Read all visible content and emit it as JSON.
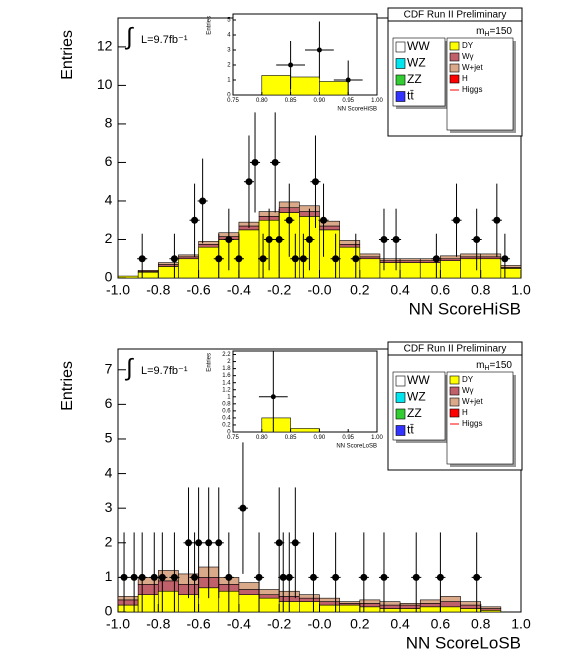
{
  "chart_data": [
    {
      "type": "stacked-histogram",
      "title": "CDF Run II Preliminary",
      "mass": [
        "m",
        "H",
        "=150"
      ],
      "integral": "∫",
      "lumi": "L=9.7fb⁻¹",
      "xlabel": "NN ScoreHiSB",
      "ylabel": "Entries",
      "xlim": [
        -1,
        1
      ],
      "ylim": [
        0,
        13.5
      ],
      "xticks": [
        {
          "value": -1,
          "label": "-1.0"
        },
        -0.8,
        -0.6,
        -0.4,
        -0.2,
        {
          "value": 0,
          "label": "-0.0"
        },
        0.2,
        0.4,
        0.6,
        0.8,
        {
          "value": 1,
          "label": "1.0"
        }
      ],
      "yticks": [
        0,
        2,
        4,
        6,
        8,
        10,
        12
      ],
      "bins": [
        -1,
        -0.9,
        -0.8,
        -0.7,
        -0.6,
        -0.5,
        -0.4,
        -0.3,
        -0.2,
        -0.1,
        0,
        0.1,
        0.2,
        0.3,
        0.4,
        0.5,
        0.6,
        0.7,
        0.8,
        0.9,
        1
      ],
      "series": [
        {
          "name": "DY",
          "color": "#ffff00",
          "values": [
            0.1,
            0.3,
            0.6,
            1.0,
            1.6,
            2.0,
            2.5,
            3.0,
            3.4,
            3.2,
            2.5,
            1.6,
            1.0,
            0.8,
            0.8,
            0.8,
            0.9,
            1.0,
            1.0,
            0.5
          ]
        },
        {
          "name": "Wγ",
          "color": "#c0606a",
          "values": [
            0,
            0.05,
            0.1,
            0.1,
            0.15,
            0.15,
            0.2,
            0.2,
            0.25,
            0.25,
            0.2,
            0.15,
            0.1,
            0.1,
            0.1,
            0.1,
            0.1,
            0.1,
            0.1,
            0.05
          ]
        },
        {
          "name": "W+jet",
          "color": "#d9a98a",
          "values": [
            0,
            0.05,
            0.1,
            0.1,
            0.15,
            0.2,
            0.2,
            0.25,
            0.3,
            0.3,
            0.25,
            0.2,
            0.15,
            0.1,
            0.1,
            0.1,
            0.15,
            0.15,
            0.15,
            0.1
          ]
        }
      ],
      "legend_left": [
        {
          "name": "WW",
          "color": "#ffffff"
        },
        {
          "name": "WZ",
          "color": "#00e5ee"
        },
        {
          "name": "ZZ",
          "color": "#33cc33"
        },
        {
          "name": "tt̄",
          "color": "#3333ff"
        }
      ],
      "legend_right": [
        {
          "name": "H",
          "color": "#ff0000"
        },
        {
          "name": "Higgs",
          "color": "#ff0000",
          "style": "line"
        }
      ],
      "data": {
        "x": [
          -0.88,
          -0.72,
          -0.62,
          -0.58,
          -0.5,
          -0.45,
          -0.4,
          -0.35,
          -0.32,
          -0.28,
          -0.25,
          -0.22,
          -0.2,
          -0.15,
          -0.12,
          -0.08,
          -0.05,
          -0.02,
          0.02,
          0.08,
          0.18,
          0.32,
          0.38,
          0.58,
          0.68,
          0.78,
          0.88,
          0.92
        ],
        "values": [
          1,
          1,
          3,
          4,
          1,
          2,
          1,
          5,
          6,
          1,
          2,
          6,
          2,
          3,
          1,
          1,
          2,
          5,
          3,
          1,
          1,
          2,
          2,
          1,
          3,
          2,
          3,
          1
        ],
        "errors": [
          1.3,
          1.3,
          1.9,
          2.2,
          1.3,
          1.6,
          1.3,
          2.4,
          2.6,
          1.3,
          1.6,
          2.6,
          1.6,
          1.9,
          1.3,
          1.3,
          1.6,
          2.4,
          1.9,
          1.3,
          1.3,
          1.6,
          1.6,
          1.3,
          1.9,
          1.6,
          1.9,
          1.3
        ]
      },
      "inset": {
        "xlabel": "NN ScoreHiSB",
        "ylabel": "Entries",
        "color": "#ffff00",
        "xlim": [
          0.75,
          1
        ],
        "ylim": [
          0,
          5.4
        ],
        "xticks": [
          0.75,
          {
            "value": 0.8,
            "label": "0.80"
          },
          0.85,
          {
            "value": 0.9,
            "label": "0.90"
          },
          0.95,
          {
            "value": 1,
            "label": "1.00"
          }
        ],
        "yticks": [
          0,
          1,
          2,
          3,
          4,
          5
        ],
        "bins": [
          0.75,
          0.8,
          0.85,
          0.9,
          0.95,
          1
        ],
        "values": [
          0,
          1.3,
          1.2,
          0.9,
          0
        ],
        "data": {
          "x": [
            0.85,
            0.9,
            0.95
          ],
          "values": [
            2,
            3,
            1
          ],
          "errors": [
            1.6,
            1.9,
            1.3
          ]
        }
      }
    },
    {
      "type": "stacked-histogram",
      "title": "CDF Run II Preliminary",
      "mass": [
        "m",
        "H",
        "=150"
      ],
      "integral": "∫",
      "lumi": "L=9.7fb⁻¹",
      "xlabel": "NN ScoreLoSB",
      "ylabel": "Entries",
      "xlim": [
        -1,
        1
      ],
      "ylim": [
        0,
        7.6
      ],
      "xticks": [
        {
          "value": -1,
          "label": "-1.0"
        },
        -0.8,
        -0.6,
        -0.4,
        -0.2,
        {
          "value": 0,
          "label": "-0.0"
        },
        0.2,
        0.4,
        0.6,
        0.8,
        {
          "value": 1,
          "label": "1.0"
        }
      ],
      "yticks": [
        0,
        1,
        2,
        3,
        4,
        5,
        6,
        7
      ],
      "bins": [
        -1,
        -0.9,
        -0.8,
        -0.7,
        -0.6,
        -0.5,
        -0.4,
        -0.3,
        -0.2,
        -0.1,
        0,
        0.1,
        0.2,
        0.3,
        0.4,
        0.5,
        0.6,
        0.7,
        0.8,
        0.9,
        1
      ],
      "series": [
        {
          "name": "DY",
          "color": "#ffff00",
          "values": [
            0.2,
            0.5,
            0.6,
            0.5,
            0.7,
            0.6,
            0.5,
            0.4,
            0.3,
            0.3,
            0.2,
            0.2,
            0.15,
            0.1,
            0.1,
            0.15,
            0.15,
            0.1,
            0.05,
            0
          ]
        },
        {
          "name": "Wγ",
          "color": "#c0606a",
          "values": [
            0.15,
            0.3,
            0.3,
            0.3,
            0.3,
            0.2,
            0.15,
            0.1,
            0.15,
            0.1,
            0.1,
            0.05,
            0.1,
            0.1,
            0.1,
            0.1,
            0.15,
            0.1,
            0.05,
            0
          ]
        },
        {
          "name": "W+jet",
          "color": "#d9a98a",
          "values": [
            0.1,
            0.2,
            0.3,
            0.3,
            0.3,
            0.2,
            0.2,
            0.15,
            0.15,
            0.1,
            0.1,
            0.05,
            0.1,
            0.1,
            0.05,
            0.1,
            0.15,
            0.1,
            0.05,
            0
          ]
        }
      ],
      "legend_left": [
        {
          "name": "WW",
          "color": "#ffffff"
        },
        {
          "name": "WZ",
          "color": "#00e5ee"
        },
        {
          "name": "ZZ",
          "color": "#33cc33"
        },
        {
          "name": "tt̄",
          "color": "#3333ff"
        }
      ],
      "legend_right": [
        {
          "name": "H",
          "color": "#ff0000"
        },
        {
          "name": "Higgs",
          "color": "#ff0000",
          "style": "line"
        }
      ],
      "data": {
        "x": [
          -0.97,
          -0.92,
          -0.88,
          -0.82,
          -0.78,
          -0.72,
          -0.65,
          -0.62,
          -0.6,
          -0.55,
          -0.5,
          -0.45,
          -0.38,
          -0.3,
          -0.2,
          -0.18,
          -0.15,
          -0.12,
          -0.03,
          0.08,
          0.22,
          0.32,
          0.48,
          0.6,
          0.78
        ],
        "values": [
          1,
          1,
          1,
          1,
          1,
          1,
          2,
          1,
          2,
          2,
          2,
          1,
          3,
          1,
          2,
          1,
          1,
          2,
          1,
          1,
          1,
          1,
          1,
          1,
          1
        ],
        "errors": [
          1.3,
          1.3,
          1.3,
          1.3,
          1.3,
          1.3,
          1.6,
          1.3,
          1.6,
          1.6,
          1.6,
          1.3,
          1.9,
          1.3,
          1.6,
          1.3,
          1.3,
          1.6,
          1.3,
          1.3,
          1.3,
          1.3,
          1.3,
          1.3,
          1.3
        ]
      },
      "inset": {
        "xlabel": "NN ScoreLoSB",
        "ylabel": "Entries",
        "color": "#ffff00",
        "xlim": [
          0.75,
          1
        ],
        "ylim": [
          0,
          2.3
        ],
        "xticks": [
          0.75,
          {
            "value": 0.8,
            "label": "0.80"
          },
          0.85,
          {
            "value": 0.9,
            "label": "0.90"
          },
          0.95,
          {
            "value": 1,
            "label": "1.00"
          }
        ],
        "yticks": [
          0,
          0.2,
          0.4,
          0.6,
          0.8,
          1,
          1.2,
          1.4,
          1.6,
          1.8,
          2,
          2.2
        ],
        "bins": [
          0.75,
          0.8,
          0.85,
          0.9,
          0.95,
          1
        ],
        "values": [
          0,
          0.4,
          0.1,
          0,
          0
        ],
        "data": {
          "x": [
            0.82
          ],
          "values": [
            1
          ],
          "errors": [
            1.3
          ]
        }
      }
    }
  ]
}
